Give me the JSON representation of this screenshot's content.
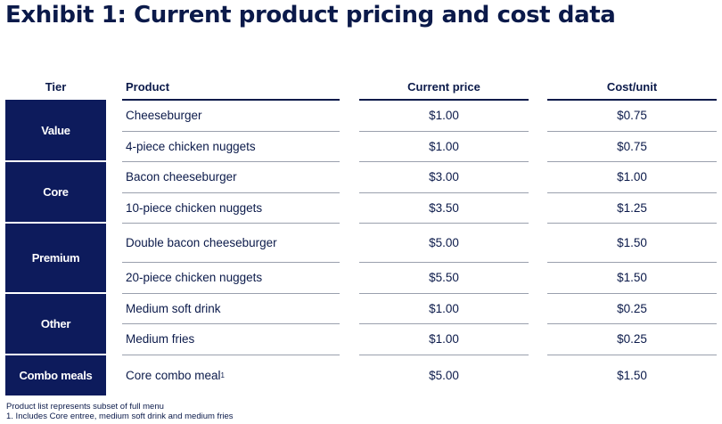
{
  "title": "Exhibit 1: Current product pricing and cost data",
  "headers": {
    "tier": "Tier",
    "product": "Product",
    "price": "Current price",
    "cost": "Cost/unit"
  },
  "tiers": [
    "Value",
    "Core",
    "Premium",
    "Other",
    "Combo meals"
  ],
  "rows": [
    {
      "product": "Cheeseburger",
      "price": "$1.00",
      "cost": "$0.75"
    },
    {
      "product": "4-piece chicken nuggets",
      "price": "$1.00",
      "cost": "$0.75"
    },
    {
      "product": "Bacon cheeseburger",
      "price": "$3.00",
      "cost": "$1.00"
    },
    {
      "product": "10-piece chicken nuggets",
      "price": "$3.50",
      "cost": "$1.25"
    },
    {
      "product": "Double bacon cheeseburger",
      "price": "$5.00",
      "cost": "$1.50"
    },
    {
      "product": "20-piece chicken nuggets",
      "price": "$5.50",
      "cost": "$1.50"
    },
    {
      "product": "Medium soft drink",
      "price": "$1.00",
      "cost": "$0.25"
    },
    {
      "product": "Medium fries",
      "price": "$1.00",
      "cost": "$0.25"
    },
    {
      "product": "Core combo meal",
      "footnote_ref": "1",
      "price": "$5.00",
      "cost": "$1.50"
    }
  ],
  "notes": [
    "Product list represents subset of full menu",
    "1. Includes Core entree, medium soft drink and medium fries"
  ]
}
